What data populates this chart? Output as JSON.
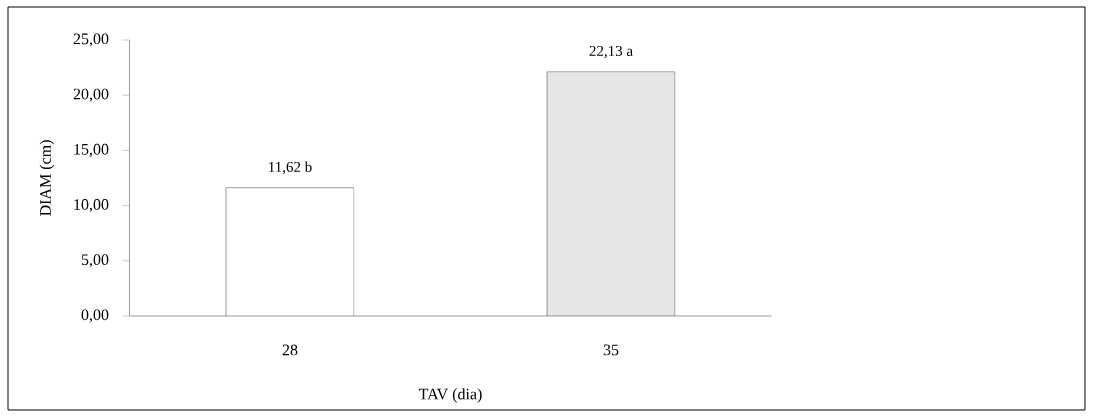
{
  "chart_data": {
    "type": "bar",
    "xlabel": "TAV (dia)",
    "ylabel": "DIAM (cm)",
    "categories": [
      "28",
      "35"
    ],
    "values": [
      11.62,
      22.13
    ],
    "colors": [
      "#ffffff",
      "#e6e6e6"
    ],
    "value_labels": [
      "11,62 b",
      "22,13 a"
    ],
    "ylim": [
      0,
      25
    ],
    "yticks": [
      {
        "value": 0,
        "label": "0,00"
      },
      {
        "value": 5,
        "label": "5,00"
      },
      {
        "value": 10,
        "label": "10,00"
      },
      {
        "value": 15,
        "label": "15,00"
      },
      {
        "value": 20,
        "label": "20,00"
      },
      {
        "value": 25,
        "label": "25,00"
      }
    ]
  }
}
